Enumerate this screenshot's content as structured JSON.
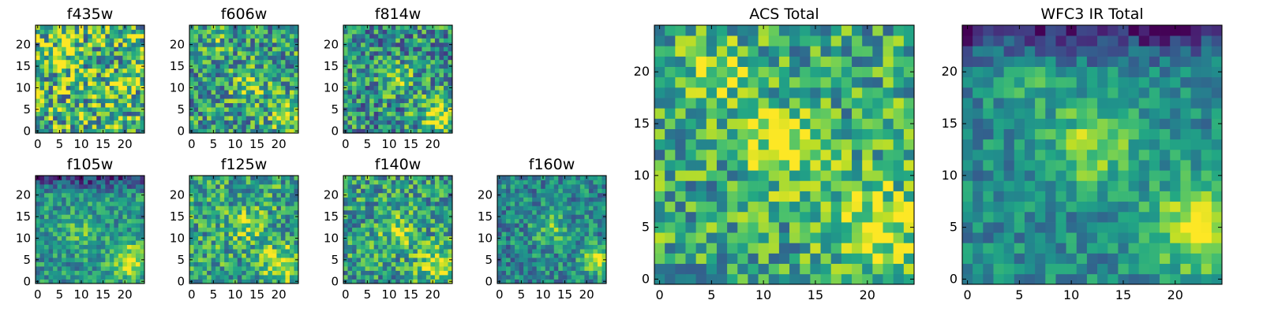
{
  "chart_data": [
    {
      "type": "heatmap",
      "title": "f435w",
      "colormap": "viridis",
      "grid": false,
      "x_ticks": [
        "0",
        "5",
        "10",
        "15",
        "20"
      ],
      "y_ticks": [
        "0",
        "5",
        "10",
        "15",
        "20"
      ],
      "xlim": [
        -0.5,
        24.5
      ],
      "ylim": [
        -0.5,
        24.5
      ],
      "pixels": 25,
      "pattern": {
        "seed": 11,
        "noise": 0.42,
        "base": 0.66,
        "blobs": [
          [
            6,
            17,
            2.5,
            0.18
          ],
          [
            18,
            10,
            2.5,
            0.1
          ]
        ]
      }
    },
    {
      "type": "heatmap",
      "title": "f606w",
      "colormap": "viridis",
      "grid": false,
      "x_ticks": [
        "0",
        "5",
        "10",
        "15",
        "20"
      ],
      "y_ticks": [
        "0",
        "5",
        "10",
        "15",
        "20"
      ],
      "xlim": [
        -0.5,
        24.5
      ],
      "ylim": [
        -0.5,
        24.5
      ],
      "pixels": 25,
      "pattern": {
        "seed": 23,
        "noise": 0.34,
        "base": 0.55,
        "blobs": [
          [
            13,
            11,
            2.5,
            0.28
          ],
          [
            22,
            4,
            3,
            0.3
          ],
          [
            6,
            20,
            2,
            0.12
          ]
        ]
      }
    },
    {
      "type": "heatmap",
      "title": "f814w",
      "colormap": "viridis",
      "grid": false,
      "x_ticks": [
        "0",
        "5",
        "10",
        "15",
        "20"
      ],
      "y_ticks": [
        "0",
        "5",
        "10",
        "15",
        "20"
      ],
      "xlim": [
        -0.5,
        24.5
      ],
      "ylim": [
        -0.5,
        24.5
      ],
      "pixels": 25,
      "pattern": {
        "seed": 37,
        "noise": 0.34,
        "base": 0.5,
        "blobs": [
          [
            12,
            12,
            2.5,
            0.3
          ],
          [
            21,
            4,
            3,
            0.42
          ]
        ]
      }
    },
    {
      "type": "heatmap",
      "title": "f105w",
      "colormap": "viridis",
      "grid": false,
      "x_ticks": [
        "0",
        "5",
        "10",
        "15",
        "20"
      ],
      "y_ticks": [
        "0",
        "5",
        "10",
        "15",
        "20"
      ],
      "xlim": [
        -0.5,
        24.5
      ],
      "ylim": [
        -0.5,
        24.5
      ],
      "pixels": 25,
      "pattern": {
        "seed": 41,
        "noise": 0.22,
        "base": 0.52,
        "blobs": [
          [
            10,
            12,
            3,
            0.18
          ],
          [
            21,
            5,
            3,
            0.4
          ]
        ],
        "top_dark": 0.35
      }
    },
    {
      "type": "heatmap",
      "title": "f125w",
      "colormap": "viridis",
      "grid": false,
      "x_ticks": [
        "0",
        "5",
        "10",
        "15",
        "20"
      ],
      "y_ticks": [
        "0",
        "5",
        "10",
        "15",
        "20"
      ],
      "xlim": [
        -0.5,
        24.5
      ],
      "ylim": [
        -0.5,
        24.5
      ],
      "pixels": 25,
      "pattern": {
        "seed": 53,
        "noise": 0.3,
        "base": 0.58,
        "blobs": [
          [
            13,
            13,
            3,
            0.22
          ],
          [
            21,
            4,
            3,
            0.38
          ]
        ]
      }
    },
    {
      "type": "heatmap",
      "title": "f140w",
      "colormap": "viridis",
      "grid": false,
      "x_ticks": [
        "0",
        "5",
        "10",
        "15",
        "20"
      ],
      "y_ticks": [
        "0",
        "5",
        "10",
        "15",
        "20"
      ],
      "xlim": [
        -0.5,
        24.5
      ],
      "ylim": [
        -0.5,
        24.5
      ],
      "pixels": 25,
      "pattern": {
        "seed": 67,
        "noise": 0.3,
        "base": 0.56,
        "blobs": [
          [
            12,
            12,
            3,
            0.25
          ],
          [
            21,
            4,
            3,
            0.38
          ]
        ]
      }
    },
    {
      "type": "heatmap",
      "title": "f160w",
      "colormap": "viridis",
      "grid": false,
      "x_ticks": [
        "0",
        "5",
        "10",
        "15",
        "20"
      ],
      "y_ticks": [
        "0",
        "5",
        "10",
        "15",
        "20"
      ],
      "xlim": [
        -0.5,
        24.5
      ],
      "ylim": [
        -0.5,
        24.5
      ],
      "pixels": 25,
      "pattern": {
        "seed": 79,
        "noise": 0.24,
        "base": 0.46,
        "blobs": [
          [
            12,
            12,
            3,
            0.25
          ],
          [
            22,
            5,
            2.5,
            0.42
          ]
        ]
      }
    },
    {
      "type": "heatmap",
      "title": "ACS Total",
      "colormap": "viridis",
      "grid": false,
      "x_ticks": [
        "0",
        "5",
        "10",
        "15",
        "20"
      ],
      "y_ticks": [
        "0",
        "5",
        "10",
        "15",
        "20"
      ],
      "xlim": [
        -0.5,
        24.5
      ],
      "ylim": [
        -0.5,
        24.5
      ],
      "pixels": 25,
      "pattern": {
        "seed": 97,
        "noise": 0.3,
        "base": 0.6,
        "blobs": [
          [
            12,
            13,
            2.5,
            0.4
          ],
          [
            21,
            5,
            3,
            0.38
          ],
          [
            6,
            20,
            2,
            0.3
          ]
        ]
      }
    },
    {
      "type": "heatmap",
      "title": "WFC3 IR Total",
      "colormap": "viridis",
      "grid": false,
      "x_ticks": [
        "0",
        "5",
        "10",
        "15",
        "20"
      ],
      "y_ticks": [
        "0",
        "5",
        "10",
        "15",
        "20"
      ],
      "xlim": [
        -0.5,
        24.5
      ],
      "ylim": [
        -0.5,
        24.5
      ],
      "pixels": 25,
      "pattern": {
        "seed": 113,
        "noise": 0.18,
        "base": 0.48,
        "blobs": [
          [
            12,
            13,
            3,
            0.34
          ],
          [
            22,
            5,
            3,
            0.5
          ],
          [
            6,
            20,
            2,
            0.18
          ]
        ],
        "top_dark": 0.4
      }
    }
  ]
}
